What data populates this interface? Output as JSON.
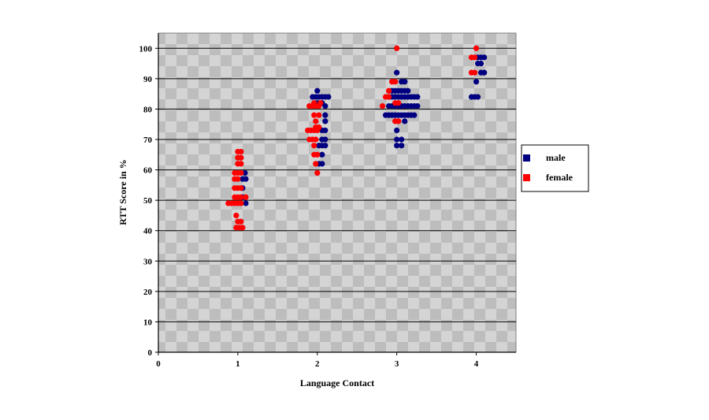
{
  "chart_data": {
    "type": "scatter",
    "xlabel": "Language Contact",
    "ylabel": "RTT Score in %",
    "xlim": [
      0,
      4.5
    ],
    "ylim": [
      0,
      105
    ],
    "x_ticks": [
      0,
      1,
      2,
      3,
      4
    ],
    "y_ticks": [
      0,
      10,
      20,
      30,
      40,
      50,
      60,
      70,
      80,
      90,
      100
    ],
    "grid": "horizontal",
    "legend_position": "right",
    "series": [
      {
        "name": "male",
        "color": "#000080",
        "points": [
          [
            1.09,
            59
          ],
          [
            1.06,
            57
          ],
          [
            1.1,
            57
          ],
          [
            1.06,
            54
          ],
          [
            1.06,
            51
          ],
          [
            1.1,
            49
          ],
          [
            2.0,
            86
          ],
          [
            1.94,
            84
          ],
          [
            1.98,
            84
          ],
          [
            2.02,
            84
          ],
          [
            2.06,
            84
          ],
          [
            2.1,
            84
          ],
          [
            2.14,
            84
          ],
          [
            2.0,
            82
          ],
          [
            2.06,
            82
          ],
          [
            2.1,
            81
          ],
          [
            2.1,
            78
          ],
          [
            2.1,
            76
          ],
          [
            2.06,
            73
          ],
          [
            2.1,
            73
          ],
          [
            2.06,
            70
          ],
          [
            2.1,
            70
          ],
          [
            2.02,
            68
          ],
          [
            2.06,
            68
          ],
          [
            2.1,
            68
          ],
          [
            2.06,
            65
          ],
          [
            2.06,
            62
          ],
          [
            2.02,
            62
          ],
          [
            3.0,
            92
          ],
          [
            3.06,
            89
          ],
          [
            3.1,
            89
          ],
          [
            2.94,
            86
          ],
          [
            2.98,
            86
          ],
          [
            3.02,
            86
          ],
          [
            3.06,
            86
          ],
          [
            3.1,
            86
          ],
          [
            3.14,
            86
          ],
          [
            2.9,
            84
          ],
          [
            2.94,
            84
          ],
          [
            2.98,
            84
          ],
          [
            3.02,
            84
          ],
          [
            3.06,
            84
          ],
          [
            3.1,
            84
          ],
          [
            3.14,
            84
          ],
          [
            3.18,
            84
          ],
          [
            3.22,
            84
          ],
          [
            3.26,
            84
          ],
          [
            2.9,
            81
          ],
          [
            2.94,
            81
          ],
          [
            2.98,
            81
          ],
          [
            3.02,
            81
          ],
          [
            3.06,
            81
          ],
          [
            3.1,
            81
          ],
          [
            3.14,
            81
          ],
          [
            3.18,
            81
          ],
          [
            3.22,
            81
          ],
          [
            3.26,
            81
          ],
          [
            2.86,
            78
          ],
          [
            2.9,
            78
          ],
          [
            2.94,
            78
          ],
          [
            2.98,
            78
          ],
          [
            3.02,
            78
          ],
          [
            3.06,
            78
          ],
          [
            3.1,
            78
          ],
          [
            3.14,
            78
          ],
          [
            3.18,
            78
          ],
          [
            3.22,
            78
          ],
          [
            3.02,
            76
          ],
          [
            3.1,
            76
          ],
          [
            3.0,
            73
          ],
          [
            3.0,
            70
          ],
          [
            3.06,
            70
          ],
          [
            3.0,
            68
          ],
          [
            3.06,
            68
          ],
          [
            4.02,
            97
          ],
          [
            4.06,
            97
          ],
          [
            4.1,
            97
          ],
          [
            4.02,
            95
          ],
          [
            4.06,
            95
          ],
          [
            4.06,
            92
          ],
          [
            4.1,
            92
          ],
          [
            4.0,
            89
          ],
          [
            3.94,
            84
          ],
          [
            3.98,
            84
          ],
          [
            4.02,
            84
          ]
        ]
      },
      {
        "name": "female",
        "color": "#ff0000",
        "points": [
          [
            1.0,
            66
          ],
          [
            1.04,
            66
          ],
          [
            1.0,
            64
          ],
          [
            1.04,
            64
          ],
          [
            1.0,
            62
          ],
          [
            1.04,
            62
          ],
          [
            0.96,
            59
          ],
          [
            1.0,
            59
          ],
          [
            1.04,
            59
          ],
          [
            0.96,
            57
          ],
          [
            1.0,
            57
          ],
          [
            0.96,
            54
          ],
          [
            1.0,
            54
          ],
          [
            1.04,
            54
          ],
          [
            0.96,
            51
          ],
          [
            1.0,
            51
          ],
          [
            1.04,
            51
          ],
          [
            1.1,
            51
          ],
          [
            0.88,
            49
          ],
          [
            0.92,
            49
          ],
          [
            0.96,
            49
          ],
          [
            1.0,
            49
          ],
          [
            1.04,
            49
          ],
          [
            0.98,
            45
          ],
          [
            1.0,
            43
          ],
          [
            1.04,
            43
          ],
          [
            0.98,
            41
          ],
          [
            1.02,
            41
          ],
          [
            1.06,
            41
          ],
          [
            1.96,
            82
          ],
          [
            2.04,
            82
          ],
          [
            1.9,
            81
          ],
          [
            1.94,
            81
          ],
          [
            1.98,
            81
          ],
          [
            2.02,
            81
          ],
          [
            1.96,
            78
          ],
          [
            2.02,
            78
          ],
          [
            1.98,
            76
          ],
          [
            1.98,
            74
          ],
          [
            2.02,
            74
          ],
          [
            1.88,
            73
          ],
          [
            1.92,
            73
          ],
          [
            1.96,
            73
          ],
          [
            2.0,
            73
          ],
          [
            1.9,
            70
          ],
          [
            1.94,
            70
          ],
          [
            1.98,
            70
          ],
          [
            1.96,
            68
          ],
          [
            1.96,
            65
          ],
          [
            2.0,
            65
          ],
          [
            1.98,
            62
          ],
          [
            2.0,
            59
          ],
          [
            3.0,
            100
          ],
          [
            2.94,
            89
          ],
          [
            2.98,
            89
          ],
          [
            2.9,
            86
          ],
          [
            2.86,
            84
          ],
          [
            2.9,
            84
          ],
          [
            2.82,
            81
          ],
          [
            2.98,
            82
          ],
          [
            3.02,
            82
          ],
          [
            2.98,
            76
          ],
          [
            3.02,
            76
          ],
          [
            4.0,
            100
          ],
          [
            3.94,
            97
          ],
          [
            3.98,
            97
          ],
          [
            3.94,
            92
          ],
          [
            3.98,
            92
          ]
        ]
      }
    ]
  }
}
